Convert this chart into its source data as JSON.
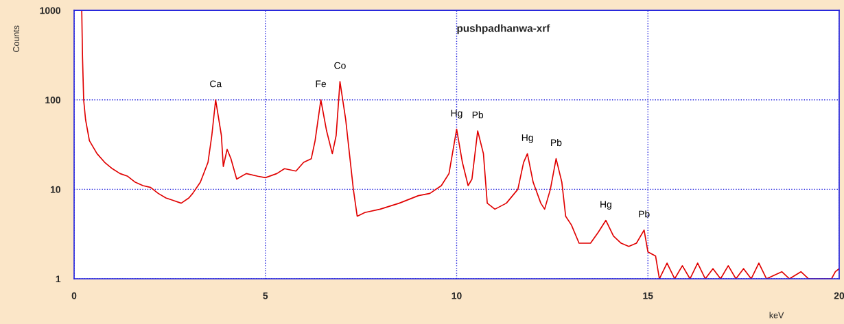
{
  "chart_data": {
    "type": "line",
    "title": "pushpadhanwa-xrf",
    "xlabel": "keV",
    "ylabel": "Counts",
    "log": "y",
    "xlim": [
      0,
      20
    ],
    "ylim": [
      1,
      1000
    ],
    "xticks": [
      0,
      5,
      10,
      15,
      20
    ],
    "yticks": [
      1,
      10,
      100,
      1000
    ],
    "grid": true,
    "marker": "none",
    "line_style": "solid",
    "series": [
      {
        "color": "#e00000",
        "x": [
          0.2,
          0.22,
          0.25,
          0.3,
          0.4,
          0.6,
          0.8,
          1.0,
          1.2,
          1.4,
          1.6,
          1.8,
          2.0,
          2.2,
          2.4,
          2.6,
          2.8,
          3.0,
          3.1,
          3.3,
          3.5,
          3.6,
          3.7,
          3.85,
          3.9,
          4.0,
          4.1,
          4.25,
          4.5,
          4.8,
          5.0,
          5.3,
          5.5,
          5.8,
          6.0,
          6.2,
          6.3,
          6.45,
          6.6,
          6.75,
          6.85,
          6.95,
          7.1,
          7.3,
          7.4,
          7.6,
          8.0,
          8.5,
          9.0,
          9.3,
          9.6,
          9.8,
          10.0,
          10.15,
          10.3,
          10.4,
          10.55,
          10.7,
          10.8,
          11.0,
          11.3,
          11.6,
          11.75,
          11.85,
          12.0,
          12.2,
          12.3,
          12.45,
          12.6,
          12.75,
          12.85,
          13.0,
          13.2,
          13.5,
          13.7,
          13.9,
          14.1,
          14.3,
          14.5,
          14.7,
          14.9,
          15.0,
          15.2,
          15.3,
          15.5,
          15.7,
          15.9,
          16.1,
          16.3,
          16.5,
          16.7,
          16.9,
          17.1,
          17.3,
          17.5,
          17.7,
          17.9,
          18.1,
          18.5,
          18.7,
          19.0,
          19.2,
          19.8,
          19.9,
          20.0
        ],
        "values": [
          1000,
          300,
          100,
          60,
          35,
          25,
          20,
          17,
          15,
          14,
          12,
          11,
          10.5,
          9,
          8,
          7.5,
          7,
          8,
          9,
          12,
          20,
          40,
          100,
          40,
          18,
          28,
          22,
          13,
          15,
          14,
          13.5,
          15,
          17,
          16,
          20,
          22,
          35,
          100,
          45,
          25,
          40,
          160,
          60,
          10,
          5,
          5.5,
          6,
          7,
          8.5,
          9,
          11,
          15,
          47,
          20,
          11,
          13,
          45,
          25,
          7,
          6,
          7,
          10,
          20,
          25,
          12,
          7,
          6,
          10,
          22,
          12,
          5,
          4,
          2.5,
          2.5,
          3.3,
          4.5,
          3,
          2.5,
          2.3,
          2.5,
          3.5,
          2,
          1.8,
          1,
          1.5,
          1,
          1.4,
          1,
          1.5,
          1,
          1.3,
          1,
          1.4,
          1,
          1.3,
          1,
          1.5,
          1,
          1.2,
          1,
          1.2,
          1,
          1,
          1.2,
          1.3
        ]
      }
    ],
    "annotations": [
      {
        "text": "Ca",
        "x": 3.7,
        "y": 100
      },
      {
        "text": "Fe",
        "x": 6.45,
        "y": 100
      },
      {
        "text": "Co",
        "x": 6.95,
        "y": 160
      },
      {
        "text": "Hg",
        "x": 10.0,
        "y": 47
      },
      {
        "text": "Pb",
        "x": 10.55,
        "y": 45
      },
      {
        "text": "Hg",
        "x": 11.85,
        "y": 25
      },
      {
        "text": "Pb",
        "x": 12.6,
        "y": 22
      },
      {
        "text": "Hg",
        "x": 13.9,
        "y": 4.5
      },
      {
        "text": "Pb",
        "x": 14.9,
        "y": 3.5
      }
    ]
  }
}
